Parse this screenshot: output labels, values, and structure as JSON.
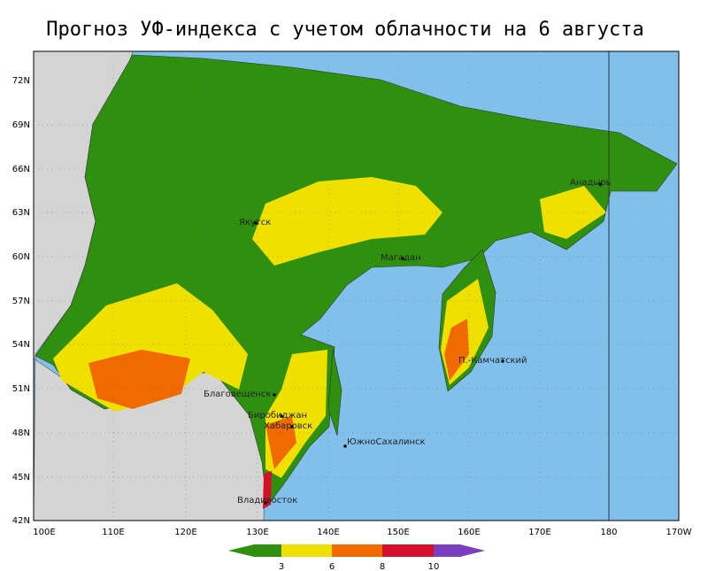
{
  "title": "Прогноз УФ-индекса с учетом облачности на  6 августа",
  "latitude_labels": [
    "72N",
    "69N",
    "66N",
    "63N",
    "60N",
    "57N",
    "54N",
    "51N",
    "48N",
    "45N",
    "42N"
  ],
  "longitude_labels": [
    "100E",
    "110E",
    "120E",
    "130E",
    "140E",
    "150E",
    "160E",
    "170E",
    "180",
    "170W"
  ],
  "cities": [
    {
      "label": "Якутск"
    },
    {
      "label": "Магадан"
    },
    {
      "label": "Анадырь"
    },
    {
      "label": "П.-Камчатский"
    },
    {
      "label": "Благовещенск"
    },
    {
      "label": "Биробиджан"
    },
    {
      "label": "Хабаровск"
    },
    {
      "label": "ЮжноСахалинск"
    },
    {
      "label": "Владивосток"
    }
  ],
  "colorbar": {
    "ticks": [
      3,
      6,
      8,
      10
    ]
  }
}
